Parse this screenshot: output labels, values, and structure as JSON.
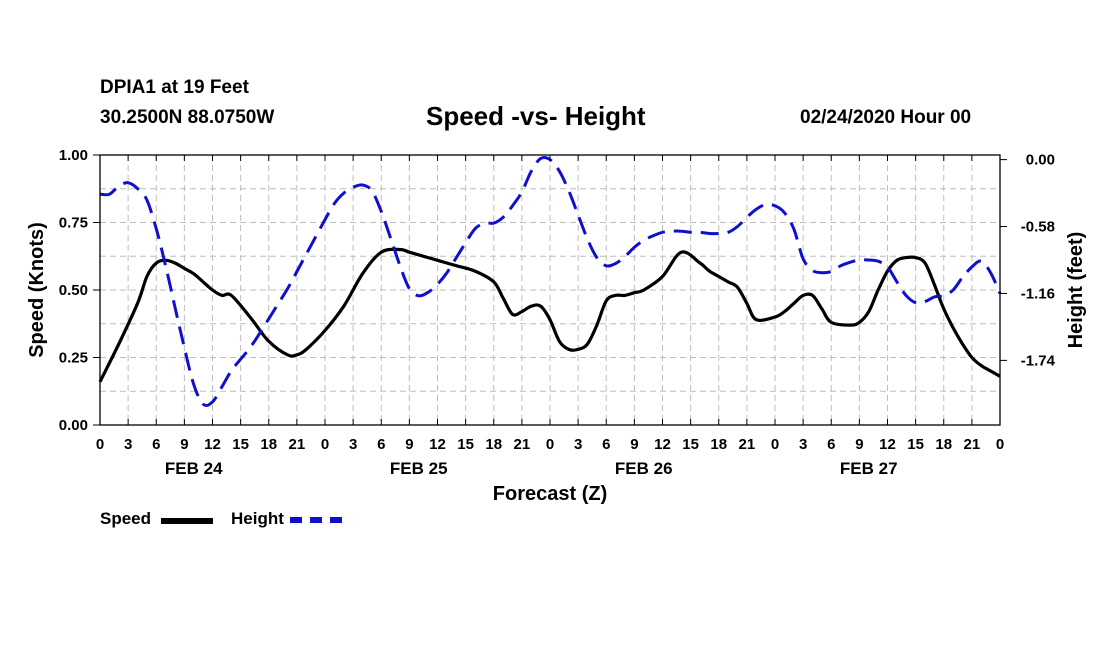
{
  "header": {
    "station": "DPIA1 at 19 Feet",
    "coords": "30.2500N 88.0750W",
    "title": "Speed -vs- Height",
    "datetime": "02/24/2020 Hour 00"
  },
  "legend": {
    "speed_label": "Speed",
    "height_label": "Height"
  },
  "colors": {
    "speed": "#000000",
    "height": "#1010cc",
    "grid": "#bdbdbd"
  },
  "chart_data": {
    "type": "line",
    "xlabel": "Forecast (Z)",
    "ylabel": "Speed (Knots)",
    "y2label": "Height (feet)",
    "xlim": [
      0,
      96
    ],
    "ylim": [
      0,
      1
    ],
    "y2lim": [
      -2.3,
      0.04
    ],
    "x_tick_labels": [
      "0",
      "3",
      "6",
      "9",
      "12",
      "15",
      "18",
      "21",
      "0",
      "3",
      "6",
      "9",
      "12",
      "15",
      "18",
      "21",
      "0",
      "3",
      "6",
      "9",
      "12",
      "15",
      "18",
      "21",
      "0",
      "3",
      "6",
      "9",
      "12",
      "15",
      "18",
      "21",
      "0"
    ],
    "date_labels": [
      "FEB 24",
      "FEB 25",
      "FEB 26",
      "FEB 27"
    ],
    "y_ticks": [
      0,
      0.25,
      0.5,
      0.75,
      1.0
    ],
    "y_tick_labels": [
      "0.00",
      "0.25",
      "0.50",
      "0.75",
      "1.00"
    ],
    "y2_ticks": [
      0,
      -0.58,
      -1.16,
      -1.74
    ],
    "y2_tick_labels": [
      "0.00",
      "-0.58",
      "-1.16",
      "-1.74"
    ],
    "series": [
      {
        "name": "Speed",
        "axis": "left",
        "style": "solid",
        "x": [
          0,
          2,
          4,
          5,
          6,
          7,
          8,
          9,
          10,
          11,
          12,
          13,
          14,
          16,
          18,
          20,
          21,
          22,
          24,
          26,
          28,
          30,
          32,
          33,
          34,
          35,
          36,
          38,
          40,
          42,
          43,
          44,
          45,
          46,
          47,
          48,
          49,
          50,
          51,
          52,
          53,
          54,
          55,
          56,
          57,
          58,
          60,
          62,
          64,
          65,
          66,
          67,
          68,
          69,
          70,
          72,
          73,
          74,
          75,
          76,
          77,
          78,
          80,
          81,
          82,
          83,
          84,
          85,
          86,
          87,
          88,
          89,
          90,
          91,
          92,
          93,
          94,
          95,
          96
        ],
        "values": [
          0.16,
          0.3,
          0.45,
          0.55,
          0.6,
          0.61,
          0.6,
          0.58,
          0.56,
          0.53,
          0.5,
          0.48,
          0.48,
          0.4,
          0.31,
          0.26,
          0.26,
          0.28,
          0.35,
          0.44,
          0.56,
          0.64,
          0.65,
          0.64,
          0.63,
          0.62,
          0.61,
          0.59,
          0.57,
          0.53,
          0.47,
          0.41,
          0.42,
          0.44,
          0.44,
          0.39,
          0.31,
          0.28,
          0.28,
          0.3,
          0.37,
          0.46,
          0.48,
          0.48,
          0.49,
          0.5,
          0.55,
          0.64,
          0.6,
          0.57,
          0.55,
          0.53,
          0.51,
          0.45,
          0.39,
          0.4,
          0.42,
          0.45,
          0.48,
          0.48,
          0.43,
          0.38,
          0.37,
          0.38,
          0.42,
          0.5,
          0.57,
          0.61,
          0.62,
          0.62,
          0.6,
          0.52,
          0.43,
          0.36,
          0.3,
          0.25,
          0.22,
          0.2,
          0.18
        ]
      },
      {
        "name": "Height",
        "axis": "right",
        "style": "dashed",
        "x": [
          0,
          1,
          2,
          3,
          4,
          5,
          6,
          7,
          8,
          9,
          10,
          11,
          12,
          13,
          14,
          15,
          16,
          17,
          18,
          19,
          20,
          21,
          22,
          23,
          24,
          25,
          26,
          27,
          28,
          29,
          30,
          31,
          32,
          33,
          34,
          35,
          36,
          37,
          38,
          39,
          40,
          41,
          42,
          43,
          44,
          45,
          46,
          47,
          48,
          49,
          50,
          51,
          52,
          53,
          54,
          55,
          56,
          57,
          58,
          59,
          60,
          61,
          62,
          63,
          64,
          65,
          66,
          67,
          68,
          69,
          70,
          71,
          72,
          73,
          74,
          75,
          76,
          77,
          78,
          79,
          80,
          81,
          82,
          83,
          84,
          85,
          86,
          87,
          88,
          89,
          90,
          91,
          92,
          93,
          94,
          95,
          96
        ],
        "values": [
          -0.3,
          -0.3,
          -0.23,
          -0.2,
          -0.25,
          -0.35,
          -0.6,
          -0.92,
          -1.28,
          -1.63,
          -1.95,
          -2.12,
          -2.1,
          -1.97,
          -1.83,
          -1.73,
          -1.63,
          -1.51,
          -1.38,
          -1.25,
          -1.12,
          -0.97,
          -0.82,
          -0.67,
          -0.52,
          -0.38,
          -0.29,
          -0.24,
          -0.22,
          -0.27,
          -0.45,
          -0.68,
          -0.92,
          -1.12,
          -1.18,
          -1.15,
          -1.08,
          -0.98,
          -0.85,
          -0.72,
          -0.6,
          -0.55,
          -0.55,
          -0.5,
          -0.4,
          -0.28,
          -0.1,
          0.01,
          0.0,
          -0.1,
          -0.27,
          -0.48,
          -0.69,
          -0.85,
          -0.92,
          -0.9,
          -0.84,
          -0.76,
          -0.7,
          -0.66,
          -0.63,
          -0.62,
          -0.62,
          -0.63,
          -0.63,
          -0.64,
          -0.64,
          -0.63,
          -0.58,
          -0.5,
          -0.43,
          -0.39,
          -0.4,
          -0.46,
          -0.6,
          -0.86,
          -0.96,
          -0.98,
          -0.97,
          -0.92,
          -0.89,
          -0.87,
          -0.87,
          -0.88,
          -0.93,
          -1.06,
          -1.18,
          -1.24,
          -1.23,
          -1.19,
          -1.18,
          -1.13,
          -1.02,
          -0.93,
          -0.88,
          -0.98,
          -1.16
        ]
      }
    ]
  }
}
